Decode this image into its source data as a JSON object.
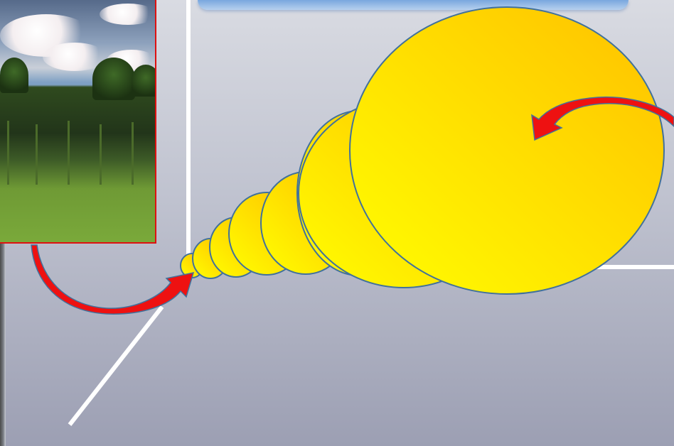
{
  "scene": {
    "description_free": true,
    "bubble_count": 8,
    "colors": {
      "bubble_light": "#ffff00",
      "bubble_dark": "#ffc000",
      "bubble_outline": "#41719c",
      "arrow_fill": "#ee1111",
      "frame_line": "#ffffff",
      "banner": "#8fb4e3",
      "photo_border": "#dd1111"
    },
    "icons": [
      "curved-arrow-icon",
      "curved-arrow-icon"
    ]
  }
}
